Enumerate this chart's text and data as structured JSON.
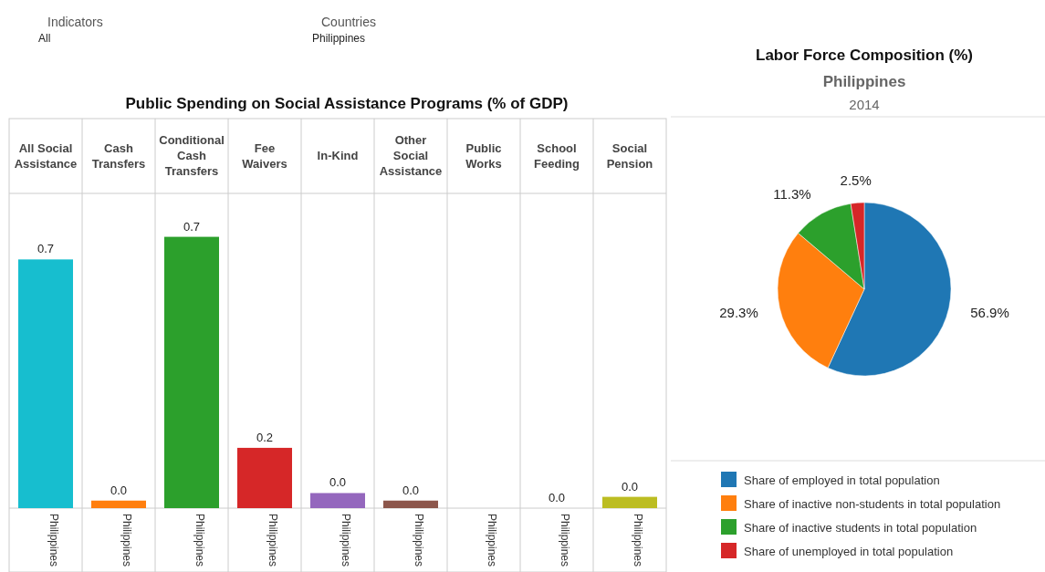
{
  "chart_data": [
    {
      "type": "other",
      "annotations": [
        "Indicators",
        "All",
        "Countries",
        "Philippines"
      ]
    },
    {
      "type": "bar",
      "title": "Public Spending on Social Assistance Programs (% of GDP)",
      "categories": [
        "All Social Assistance",
        "Cash Transfers",
        "Conditional Cash Transfers",
        "Fee Waivers",
        "In-Kind",
        "Other Social Assistance",
        "Public Works",
        "School Feeding",
        "Social Pension"
      ],
      "series": [
        {
          "name": "Philippines",
          "colors": [
            "#17becf",
            "#ff7f0e",
            "#2ca02c",
            "#d62728",
            "#9467bd",
            "#8c564b",
            null,
            "#7f7f7f",
            "#bcbd22"
          ],
          "values": [
            0.66,
            0.02,
            0.72,
            0.16,
            0.04,
            0.02,
            null,
            0.0,
            0.03
          ],
          "value_labels": [
            "0.7",
            "0.0",
            "0.7",
            "0.2",
            "0.0",
            "0.0",
            null,
            "0.0",
            "0.0"
          ]
        }
      ]
    },
    {
      "type": "pie",
      "title": "Labor Force Composition (%)",
      "subtitle": "Philippines",
      "annotations": [
        "2014"
      ],
      "categories": [
        "Share of employed in total population",
        "Share of inactive non-students in total population",
        "Share of inactive students in total population",
        "Share of unemployed in total population"
      ],
      "values": [
        56.9,
        29.3,
        11.3,
        2.5
      ],
      "colors": [
        "#1f77b4",
        "#ff7f0e",
        "#2ca02c",
        "#d62728"
      ],
      "value_labels": [
        "56.9%",
        "29.3%",
        "11.3%",
        "2.5%"
      ],
      "legend": "bottom"
    }
  ]
}
